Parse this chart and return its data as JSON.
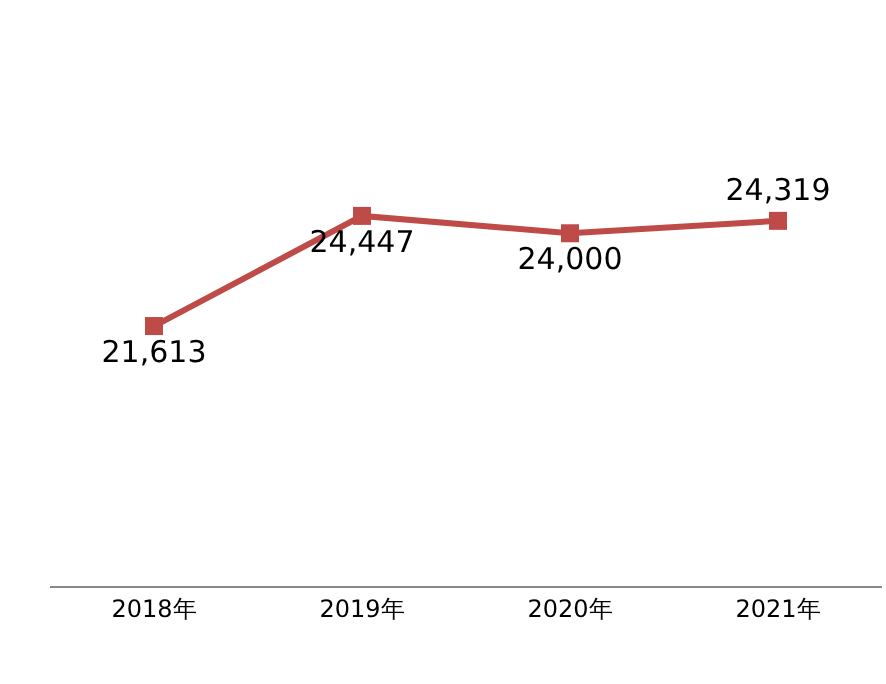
{
  "chart_data": {
    "type": "line",
    "categories": [
      "2018年",
      "2019年",
      "2020年",
      "2021年"
    ],
    "series": [
      {
        "color": "#be4b48",
        "values": [
          21613,
          24447,
          24000,
          24319
        ],
        "value_labels": [
          "21,613",
          "24,447",
          "24,000",
          "24,319"
        ]
      }
    ],
    "marker": "square",
    "line_style": "solid",
    "tick_labels": "x"
  }
}
